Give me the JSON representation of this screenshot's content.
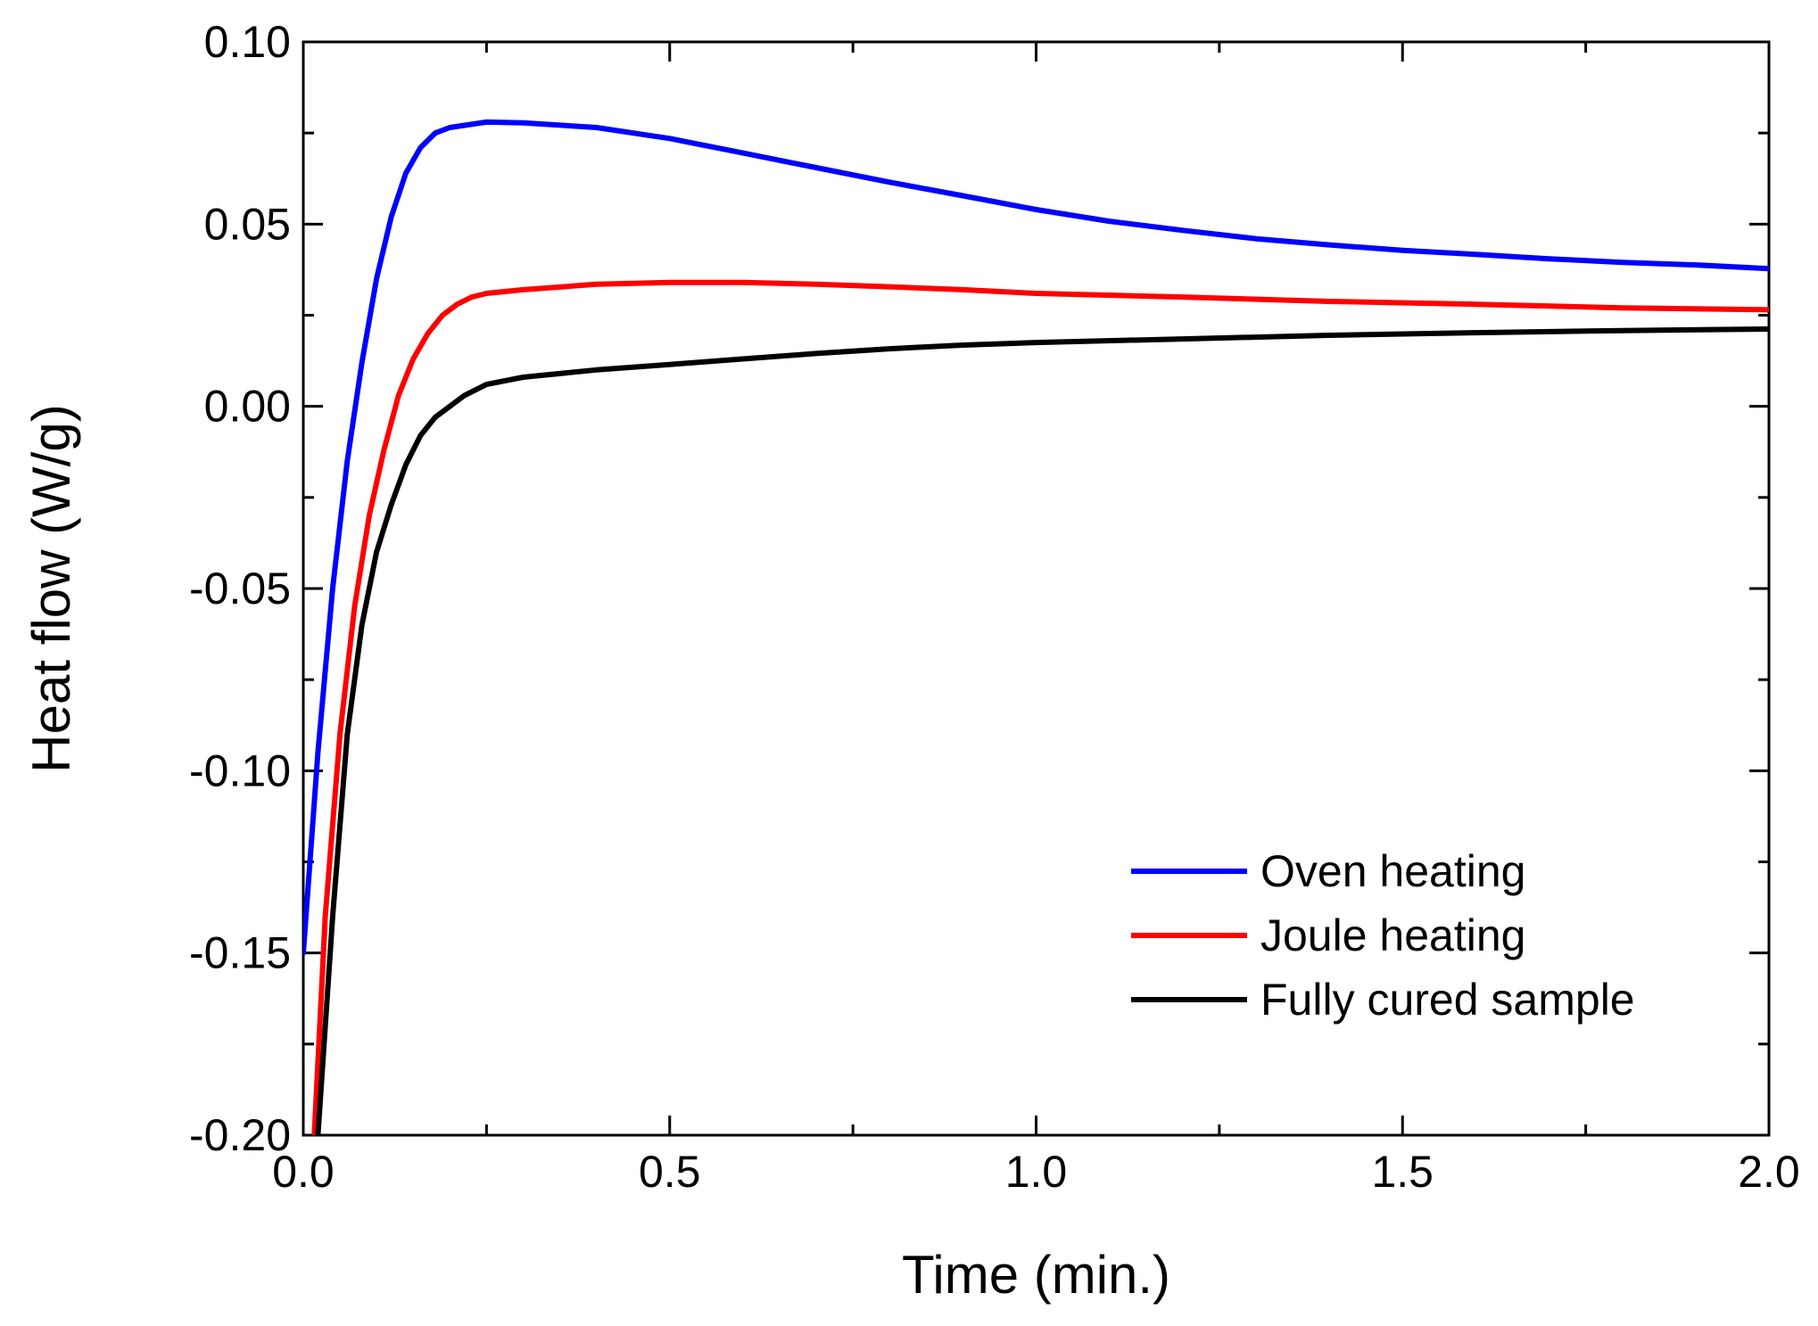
{
  "chart_data": {
    "type": "line",
    "title": "",
    "xlabel": "Time (min.)",
    "ylabel": "Heat flow (W/g)",
    "xlim": [
      0.0,
      2.0
    ],
    "ylim": [
      -0.2,
      0.1
    ],
    "x_ticks": [
      0.0,
      0.5,
      1.0,
      1.5,
      2.0
    ],
    "x_tick_labels": [
      "0.0",
      "0.5",
      "1.0",
      "1.5",
      "2.0"
    ],
    "y_ticks": [
      -0.2,
      -0.15,
      -0.1,
      -0.05,
      0.0,
      0.05,
      0.1
    ],
    "y_tick_labels": [
      "-0.20",
      "-0.15",
      "-0.10",
      "-0.05",
      "0.00",
      "0.05",
      "0.10"
    ],
    "grid": false,
    "legend_position": "bottom-right",
    "series": [
      {
        "name": "Oven heating",
        "color": "#0000ff",
        "points": [
          [
            0.0,
            -0.15
          ],
          [
            0.02,
            -0.095
          ],
          [
            0.04,
            -0.05
          ],
          [
            0.06,
            -0.015
          ],
          [
            0.08,
            0.012
          ],
          [
            0.1,
            0.035
          ],
          [
            0.12,
            0.052
          ],
          [
            0.14,
            0.064
          ],
          [
            0.16,
            0.071
          ],
          [
            0.18,
            0.075
          ],
          [
            0.2,
            0.0765
          ],
          [
            0.25,
            0.078
          ],
          [
            0.3,
            0.0778
          ],
          [
            0.4,
            0.0765
          ],
          [
            0.5,
            0.0735
          ],
          [
            0.6,
            0.0695
          ],
          [
            0.7,
            0.0655
          ],
          [
            0.8,
            0.0615
          ],
          [
            0.9,
            0.0578
          ],
          [
            1.0,
            0.054
          ],
          [
            1.1,
            0.0508
          ],
          [
            1.2,
            0.0483
          ],
          [
            1.3,
            0.046
          ],
          [
            1.4,
            0.0443
          ],
          [
            1.5,
            0.0428
          ],
          [
            1.6,
            0.0417
          ],
          [
            1.7,
            0.0405
          ],
          [
            1.8,
            0.0395
          ],
          [
            1.9,
            0.0388
          ],
          [
            2.0,
            0.0378
          ]
        ]
      },
      {
        "name": "Joule heating",
        "color": "#ff0000",
        "points": [
          [
            0.015,
            -0.2
          ],
          [
            0.03,
            -0.14
          ],
          [
            0.05,
            -0.09
          ],
          [
            0.07,
            -0.055
          ],
          [
            0.09,
            -0.03
          ],
          [
            0.11,
            -0.012
          ],
          [
            0.13,
            0.003
          ],
          [
            0.15,
            0.013
          ],
          [
            0.17,
            0.02
          ],
          [
            0.19,
            0.025
          ],
          [
            0.21,
            0.028
          ],
          [
            0.23,
            0.03
          ],
          [
            0.25,
            0.031
          ],
          [
            0.3,
            0.032
          ],
          [
            0.4,
            0.0335
          ],
          [
            0.5,
            0.034
          ],
          [
            0.6,
            0.034
          ],
          [
            0.7,
            0.0335
          ],
          [
            0.8,
            0.0328
          ],
          [
            0.9,
            0.032
          ],
          [
            1.0,
            0.031
          ],
          [
            1.2,
            0.03
          ],
          [
            1.4,
            0.0288
          ],
          [
            1.6,
            0.028
          ],
          [
            1.8,
            0.027
          ],
          [
            2.0,
            0.0265
          ]
        ]
      },
      {
        "name": "Fully cured sample",
        "color": "#000000",
        "points": [
          [
            0.02,
            -0.2
          ],
          [
            0.04,
            -0.14
          ],
          [
            0.06,
            -0.09
          ],
          [
            0.08,
            -0.06
          ],
          [
            0.1,
            -0.04
          ],
          [
            0.12,
            -0.027
          ],
          [
            0.14,
            -0.016
          ],
          [
            0.16,
            -0.008
          ],
          [
            0.18,
            -0.003
          ],
          [
            0.2,
            0.0
          ],
          [
            0.22,
            0.003
          ],
          [
            0.25,
            0.006
          ],
          [
            0.3,
            0.008
          ],
          [
            0.4,
            0.01
          ],
          [
            0.5,
            0.0115
          ],
          [
            0.6,
            0.013
          ],
          [
            0.7,
            0.0145
          ],
          [
            0.8,
            0.0158
          ],
          [
            0.9,
            0.0168
          ],
          [
            1.0,
            0.0175
          ],
          [
            1.2,
            0.0185
          ],
          [
            1.4,
            0.0195
          ],
          [
            1.6,
            0.0202
          ],
          [
            1.8,
            0.0208
          ],
          [
            2.0,
            0.0212
          ]
        ]
      }
    ]
  }
}
